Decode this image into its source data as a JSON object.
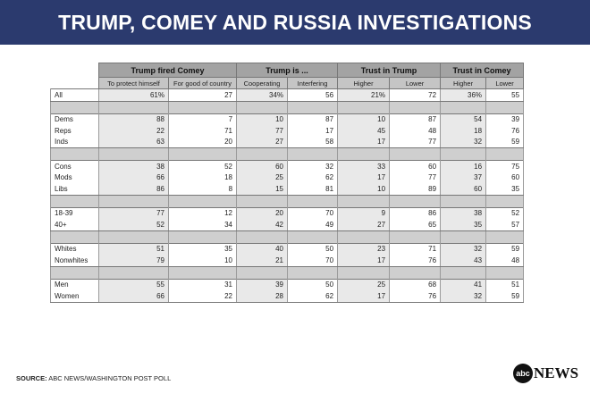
{
  "title": "TRUMP, COMEY AND RUSSIA INVESTIGATIONS",
  "source_label": "SOURCE:",
  "source_text": "ABC NEWS/WASHINGTON POST POLL",
  "logo": {
    "circle_text": "abc",
    "word": "NEWS"
  },
  "chart_data": {
    "type": "table",
    "groups": [
      {
        "label": "Trump fired Comey",
        "columns": [
          "To protect himself",
          "For good of country"
        ]
      },
      {
        "label": "Trump is ...",
        "columns": [
          "Cooperating",
          "Interfering"
        ]
      },
      {
        "label": "Trust in Trump",
        "columns": [
          "Higher",
          "Lower"
        ]
      },
      {
        "label": "Trust in Comey",
        "columns": [
          "Higher",
          "Lower"
        ]
      }
    ],
    "sections": [
      [
        {
          "label": "All",
          "values": [
            "61%",
            "27",
            "34%",
            "56",
            "21%",
            "72",
            "36%",
            "55"
          ]
        }
      ],
      [
        {
          "label": "Dems",
          "values": [
            "88",
            "7",
            "10",
            "87",
            "10",
            "87",
            "54",
            "39"
          ]
        },
        {
          "label": "Reps",
          "values": [
            "22",
            "71",
            "77",
            "17",
            "45",
            "48",
            "18",
            "76"
          ]
        },
        {
          "label": "Inds",
          "values": [
            "63",
            "20",
            "27",
            "58",
            "17",
            "77",
            "32",
            "59"
          ]
        }
      ],
      [
        {
          "label": "Cons",
          "values": [
            "38",
            "52",
            "60",
            "32",
            "33",
            "60",
            "16",
            "75"
          ]
        },
        {
          "label": "Mods",
          "values": [
            "66",
            "18",
            "25",
            "62",
            "17",
            "77",
            "37",
            "60"
          ]
        },
        {
          "label": "Libs",
          "values": [
            "86",
            "8",
            "15",
            "81",
            "10",
            "89",
            "60",
            "35"
          ]
        }
      ],
      [
        {
          "label": "18-39",
          "values": [
            "77",
            "12",
            "20",
            "70",
            "9",
            "86",
            "38",
            "52"
          ]
        },
        {
          "label": "40+",
          "values": [
            "52",
            "34",
            "42",
            "49",
            "27",
            "65",
            "35",
            "57"
          ]
        }
      ],
      [
        {
          "label": "Whites",
          "values": [
            "51",
            "35",
            "40",
            "50",
            "23",
            "71",
            "32",
            "59"
          ]
        },
        {
          "label": "Nonwhites",
          "values": [
            "79",
            "10",
            "21",
            "70",
            "17",
            "76",
            "43",
            "48"
          ]
        }
      ],
      [
        {
          "label": "Men",
          "values": [
            "55",
            "31",
            "39",
            "50",
            "25",
            "68",
            "41",
            "51"
          ]
        },
        {
          "label": "Women",
          "values": [
            "66",
            "22",
            "28",
            "62",
            "17",
            "76",
            "32",
            "59"
          ]
        }
      ]
    ]
  }
}
